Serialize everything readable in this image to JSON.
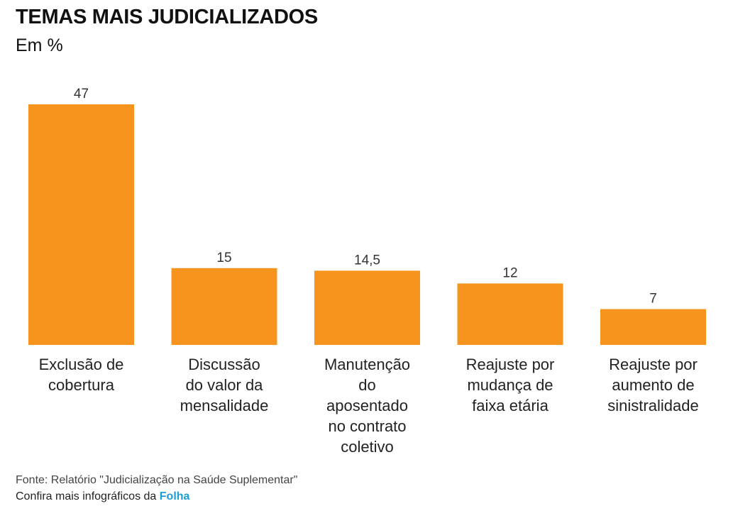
{
  "chart_data": {
    "type": "bar",
    "title": "TEMAS MAIS JUDICIALIZADOS",
    "subtitle": "Em %",
    "categories": [
      [
        "Exclusão de",
        "cobertura"
      ],
      [
        "Discussão",
        "do valor da",
        "mensalidade"
      ],
      [
        "Manutenção",
        "do",
        "aposentado",
        "no contrato",
        "coletivo"
      ],
      [
        "Reajuste por",
        "mudança de",
        "faixa etária"
      ],
      [
        "Reajuste por",
        "aumento de",
        "sinistralidade"
      ]
    ],
    "values": [
      47,
      15,
      14.5,
      12,
      7
    ],
    "value_labels": [
      "47",
      "15",
      "14,5",
      "12",
      "7"
    ],
    "ylim": [
      0,
      47
    ],
    "bar_color": "#f7941d"
  },
  "footer": {
    "source": "Fonte: Relatório \"Judicialização na Saúde Suplementar\"",
    "more_prefix": "Confira mais infográficos da",
    "brand": "Folha",
    "brand_color": "#1a9ed8"
  }
}
